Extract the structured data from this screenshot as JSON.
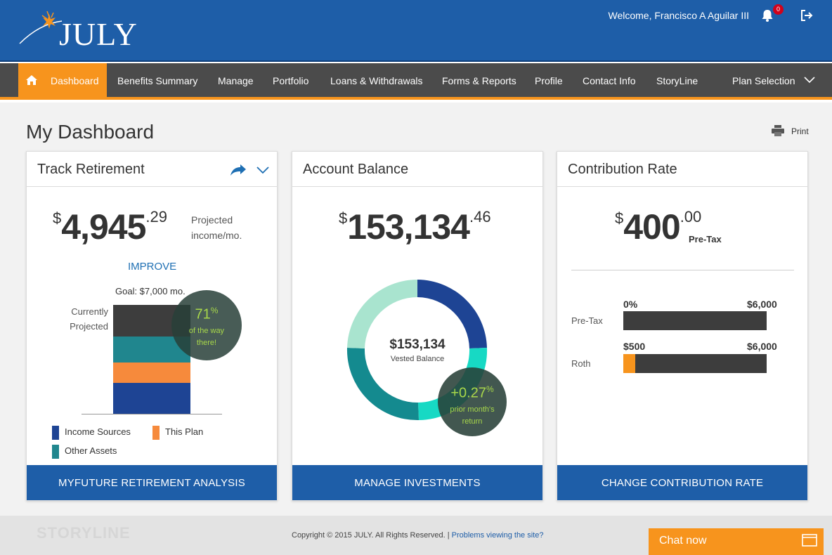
{
  "header": {
    "logo_text": "JULY",
    "welcome": "Welcome,  Francisco A Aguilar III",
    "notification_count": "0",
    "bg_color": "#1e5ea8"
  },
  "nav": {
    "items": [
      {
        "label": "Dashboard",
        "active": true
      },
      {
        "label": "Benefits Summary"
      },
      {
        "label": "Manage"
      },
      {
        "label": "Portfolio"
      },
      {
        "label": "Loans & Withdrawals"
      },
      {
        "label": "Forms & Reports"
      },
      {
        "label": "Profile"
      },
      {
        "label": "Contact Info"
      },
      {
        "label": "StoryLine"
      },
      {
        "label": "Plan Selection"
      }
    ],
    "accent_color": "#f7941d"
  },
  "page": {
    "title": "My Dashboard",
    "print_label": "Print"
  },
  "track": {
    "title": "Track Retirement",
    "currency": "$",
    "amount_int": "4,945",
    "amount_dec": ".29",
    "projected_label": "Projected income/mo.",
    "improve": "IMPROVE",
    "goal": "Goal: $7,000 mo.",
    "currently_projected": "Currently Projected",
    "pct": "71",
    "pct_sym": "%",
    "pct_sub": "of the way there!",
    "legend": [
      {
        "label": "Income Sources",
        "color": "#1e4494"
      },
      {
        "label": "This Plan",
        "color": "#f68a3c"
      },
      {
        "label": "Other Assets",
        "color": "#20868e"
      }
    ],
    "stack_colors": {
      "gap": "#3d3d3d",
      "other_assets": "#20868e",
      "this_plan": "#f68a3c",
      "income_sources": "#1e4494"
    },
    "button": "MYFUTURE RETIREMENT ANALYSIS"
  },
  "balance": {
    "title": "Account Balance",
    "currency": "$",
    "amount_int": "153,134",
    "amount_dec": ".46",
    "center_value": "$153,134",
    "center_label": "Vested Balance",
    "return_pct": "+0.27",
    "return_sym": "%",
    "return_sub": "prior month's return",
    "button": "MANAGE INVESTMENTS"
  },
  "contribution": {
    "title": "Contribution Rate",
    "currency": "$",
    "amount_int": "400",
    "amount_dec": ".00",
    "amount_type": "Pre-Tax",
    "rows": [
      {
        "label": "Pre-Tax",
        "min": "0%",
        "max": "$6,000",
        "fill": 0
      },
      {
        "label": "Roth",
        "min": "$500",
        "max": "$6,000",
        "fill": 0.083
      }
    ],
    "button": "CHANGE CONTRIBUTION RATE"
  },
  "footer": {
    "storyline": "STORYLINE",
    "copyright": "Copyright © 2015 JULY. All Rights Reserved. |",
    "problems_link": "Problems viewing the site?",
    "chat": "Chat now"
  }
}
